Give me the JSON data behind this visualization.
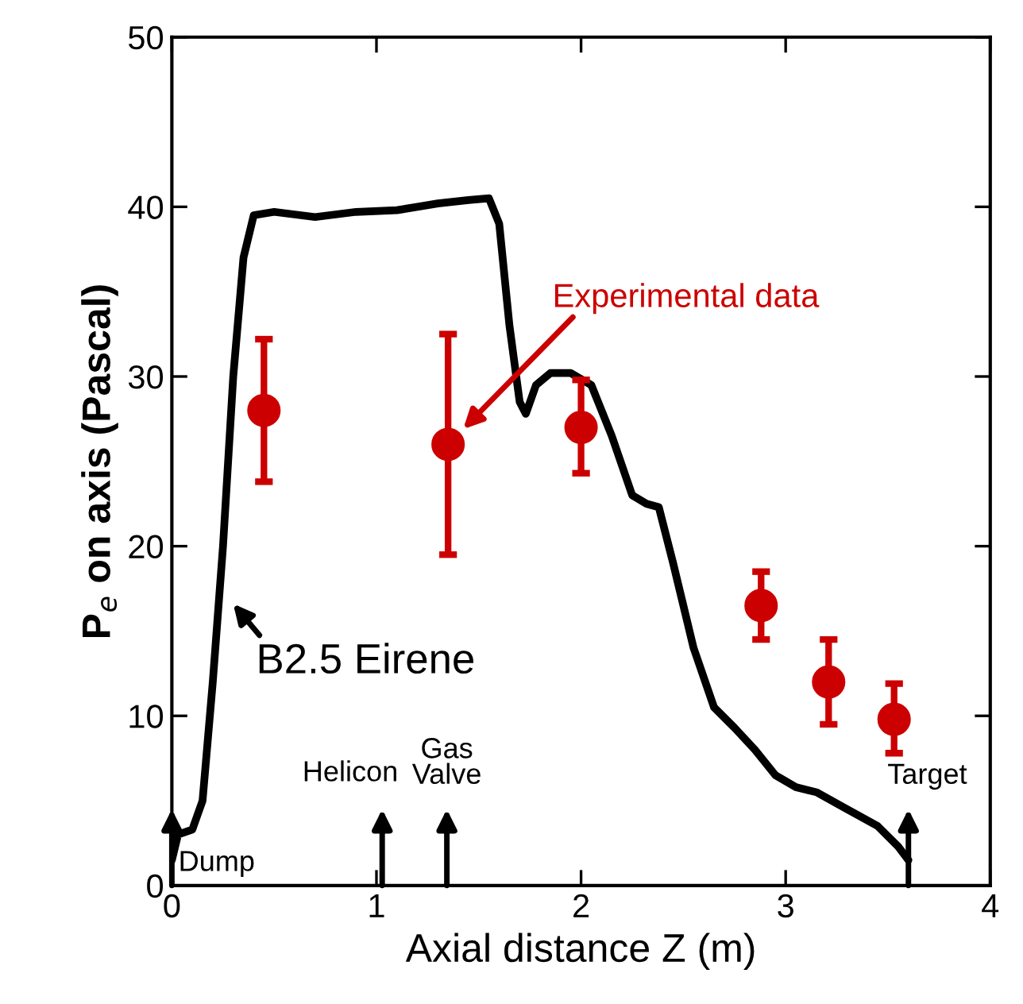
{
  "chart_data": {
    "type": "line",
    "xlabel": "Axial distance Z (m)",
    "ylabel": "P$_{e}$ on axis (Pascal)",
    "xlim": [
      0,
      4
    ],
    "ylim": [
      0,
      50
    ],
    "xticks": [
      0,
      1,
      2,
      3,
      4
    ],
    "yticks": [
      0,
      10,
      20,
      30,
      40,
      50
    ],
    "grid": false,
    "series": [
      {
        "color": "#000000",
        "x": [
          0,
          0.03,
          0.1,
          0.15,
          0.2,
          0.25,
          0.3,
          0.35,
          0.4,
          0.5,
          0.7,
          0.9,
          1.1,
          1.3,
          1.45,
          1.55,
          1.6,
          1.65,
          1.7,
          1.73,
          1.78,
          1.85,
          1.95,
          2.05,
          2.15,
          2.25,
          2.32,
          2.38,
          2.45,
          2.55,
          2.65,
          2.75,
          2.85,
          2.95,
          3.05,
          3.15,
          3.3,
          3.45,
          3.55,
          3.6
        ],
        "values": [
          1.5,
          3,
          3.3,
          5,
          12,
          20,
          30,
          37,
          39.5,
          39.7,
          39.4,
          39.7,
          39.8,
          40.2,
          40.4,
          40.5,
          39,
          33,
          28.5,
          27.8,
          29.5,
          30.2,
          30.2,
          29.5,
          26.5,
          23,
          22.5,
          22.3,
          19,
          14,
          10.5,
          9.3,
          8,
          6.5,
          5.8,
          5.5,
          4.5,
          3.5,
          2.3,
          1.5
        ]
      },
      {
        "type": "scatter",
        "color": "#cc0000",
        "marker": "circle",
        "x": [
          0.45,
          1.35,
          2.0,
          2.88,
          3.21,
          3.53
        ],
        "values": [
          28,
          26,
          27,
          16.5,
          12,
          9.8
        ],
        "errors": [
          [
            23.8,
            32.2
          ],
          [
            19.5,
            32.5
          ],
          [
            24.3,
            29.8
          ],
          [
            14.5,
            18.5
          ],
          [
            9.5,
            14.5
          ],
          [
            7.8,
            11.9
          ]
        ]
      }
    ],
    "annotations": [
      "Experimental data",
      "B2.5 Eirene",
      "Dump",
      "Helicon",
      "Gas\nValve",
      "Target"
    ]
  }
}
